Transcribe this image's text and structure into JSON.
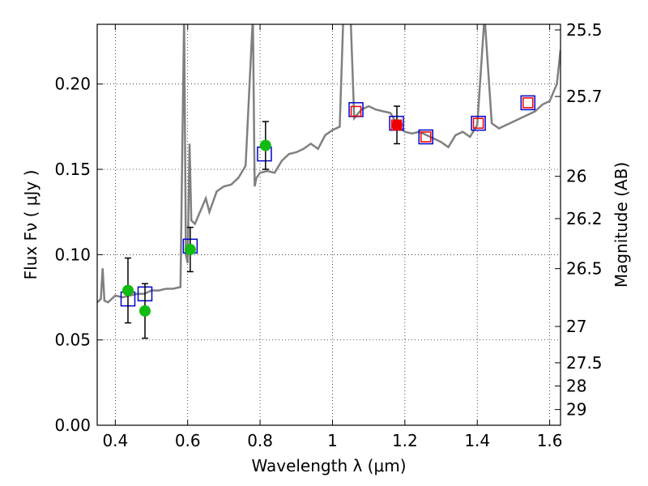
{
  "chart_data": {
    "type": "scatter",
    "xlabel": "Wavelength  λ (μm)",
    "ylabel": "Flux  Fν  ( μJy )",
    "y2label": "Magnitude (AB)",
    "xlim": [
      0.35,
      1.63
    ],
    "ylim": [
      0.0,
      0.235
    ],
    "x_ticks": [
      0.4,
      0.6,
      0.8,
      1.0,
      1.2,
      1.4,
      1.6
    ],
    "x_tick_labels": [
      "0.4",
      "0.6",
      "0.8",
      "1",
      "1.2",
      "1.4",
      "1.6"
    ],
    "y_ticks": [
      0.0,
      0.05,
      0.1,
      0.15,
      0.2
    ],
    "y_tick_labels": [
      "0.00",
      "0.05",
      "0.10",
      "0.15",
      "0.20"
    ],
    "y2_ticks": [
      {
        "flux": 0.2317,
        "label": "25.5"
      },
      {
        "flux": 0.1927,
        "label": "25.7"
      },
      {
        "flux": 0.1459,
        "label": "26"
      },
      {
        "flux": 0.1211,
        "label": "26.2"
      },
      {
        "flux": 0.0918,
        "label": "26.5"
      },
      {
        "flux": 0.0579,
        "label": "27"
      },
      {
        "flux": 0.0366,
        "label": "27.5"
      },
      {
        "flux": 0.023,
        "label": "28"
      },
      {
        "flux": 0.0092,
        "label": "29"
      }
    ],
    "grid": true,
    "colors": {
      "spectrum": "#808080",
      "green": "#11bb11",
      "red": "#ee0000",
      "blue_square": "#0000cc",
      "red_square": "#ee0000",
      "errorbar": "#000000"
    },
    "spectrum": {
      "x": [
        0.35,
        0.36,
        0.365,
        0.37,
        0.38,
        0.39,
        0.4,
        0.42,
        0.44,
        0.46,
        0.48,
        0.5,
        0.52,
        0.54,
        0.56,
        0.58,
        0.59,
        0.595,
        0.6,
        0.605,
        0.61,
        0.62,
        0.63,
        0.64,
        0.65,
        0.66,
        0.68,
        0.7,
        0.72,
        0.74,
        0.76,
        0.78,
        0.785,
        0.79,
        0.8,
        0.82,
        0.84,
        0.86,
        0.88,
        0.9,
        0.92,
        0.94,
        0.96,
        0.98,
        1.0,
        1.02,
        1.03,
        1.04,
        1.05,
        1.06,
        1.08,
        1.1,
        1.12,
        1.14,
        1.16,
        1.18,
        1.2,
        1.22,
        1.24,
        1.26,
        1.28,
        1.3,
        1.32,
        1.34,
        1.36,
        1.38,
        1.4,
        1.42,
        1.44,
        1.46,
        1.48,
        1.5,
        1.52,
        1.54,
        1.56,
        1.58,
        1.6,
        1.62,
        1.63
      ],
      "y": [
        0.072,
        0.074,
        0.092,
        0.073,
        0.072,
        0.074,
        0.076,
        0.075,
        0.076,
        0.077,
        0.077,
        0.079,
        0.079,
        0.08,
        0.08,
        0.081,
        0.24,
        0.1,
        0.095,
        0.165,
        0.12,
        0.118,
        0.123,
        0.128,
        0.133,
        0.125,
        0.137,
        0.14,
        0.141,
        0.145,
        0.152,
        0.24,
        0.14,
        0.145,
        0.148,
        0.149,
        0.148,
        0.155,
        0.159,
        0.16,
        0.162,
        0.165,
        0.162,
        0.17,
        0.173,
        0.175,
        0.24,
        0.24,
        0.24,
        0.18,
        0.185,
        0.187,
        0.185,
        0.184,
        0.183,
        0.176,
        0.172,
        0.171,
        0.172,
        0.17,
        0.168,
        0.166,
        0.163,
        0.17,
        0.172,
        0.169,
        0.176,
        0.24,
        0.177,
        0.174,
        0.176,
        0.178,
        0.18,
        0.182,
        0.184,
        0.188,
        0.19,
        0.2,
        0.22
      ]
    },
    "series": [
      {
        "marker": "circle",
        "color": "green",
        "points": [
          {
            "x": 0.435,
            "y": 0.079,
            "err": 0.019
          },
          {
            "x": 0.482,
            "y": 0.067,
            "err": 0.016
          },
          {
            "x": 0.607,
            "y": 0.103,
            "err": 0.013
          },
          {
            "x": 0.815,
            "y": 0.164,
            "err": 0.014
          }
        ]
      },
      {
        "marker": "circle",
        "color": "red",
        "points": [
          {
            "x": 1.178,
            "y": 0.176,
            "err": 0.011
          }
        ]
      },
      {
        "marker": "open-square",
        "color": "blue_square",
        "points": [
          {
            "x": 0.435,
            "y": 0.074
          },
          {
            "x": 0.482,
            "y": 0.077
          },
          {
            "x": 0.607,
            "y": 0.105
          },
          {
            "x": 0.812,
            "y": 0.159
          },
          {
            "x": 1.065,
            "y": 0.185
          },
          {
            "x": 1.177,
            "y": 0.177
          },
          {
            "x": 1.258,
            "y": 0.169
          },
          {
            "x": 1.403,
            "y": 0.177
          },
          {
            "x": 1.54,
            "y": 0.189
          }
        ]
      },
      {
        "marker": "open-square",
        "color": "red_square",
        "points": [
          {
            "x": 1.065,
            "y": 0.184
          },
          {
            "x": 1.177,
            "y": 0.176
          },
          {
            "x": 1.258,
            "y": 0.169
          },
          {
            "x": 1.403,
            "y": 0.177
          },
          {
            "x": 1.54,
            "y": 0.189
          }
        ]
      }
    ]
  }
}
